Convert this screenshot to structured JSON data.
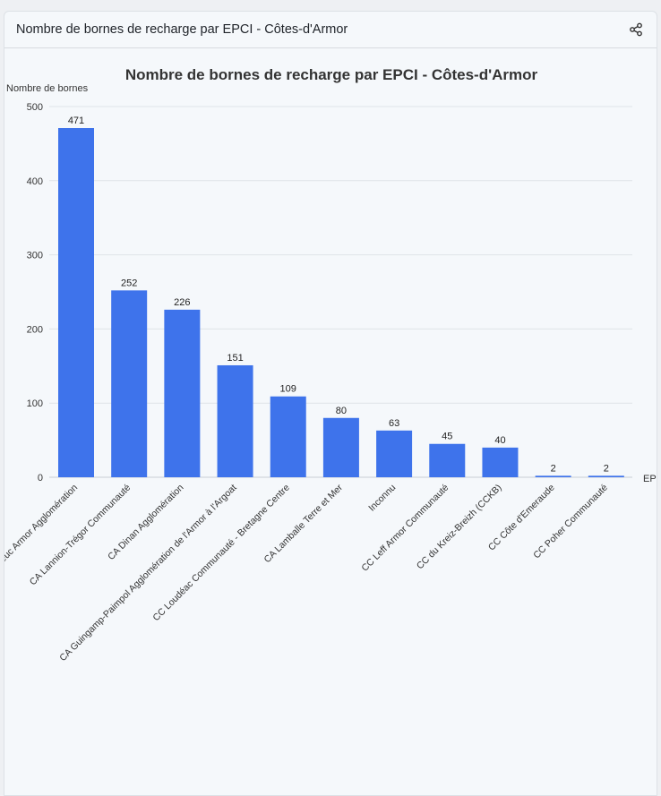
{
  "header": {
    "title": "Nombre de bornes de recharge par EPCI - Côtes-d'Armor",
    "share_icon": "share-icon"
  },
  "colors": {
    "bar": "#3e73eb",
    "grid": "#dfe3e8",
    "text": "#333333"
  },
  "chart_data": {
    "type": "bar",
    "title": "Nombre de bornes de recharge par EPCI - Côtes-d'Armor",
    "ylabel": "Nombre de bornes",
    "xlabel": "EPCI",
    "ylim": [
      0,
      500
    ],
    "yticks": [
      0,
      100,
      200,
      300,
      400,
      500
    ],
    "grid": true,
    "categories": [
      "Saint-Brieuc Armor Agglomération",
      "CA Lannion-Trégor Communauté",
      "CA Dinan Agglomération",
      "CA Guingamp-Paimpol Agglomération de l'Armor à l'Argoat",
      "CC Loudéac Communauté - Bretagne Centre",
      "CA Lamballe Terre et Mer",
      "Inconnu",
      "CC Leff Armor Communauté",
      "CC du Kreiz-Breizh (CCKB)",
      "CC Côte d'Emeraude",
      "CC Poher Communauté"
    ],
    "values": [
      471,
      252,
      226,
      151,
      109,
      80,
      63,
      45,
      40,
      2,
      2
    ]
  }
}
